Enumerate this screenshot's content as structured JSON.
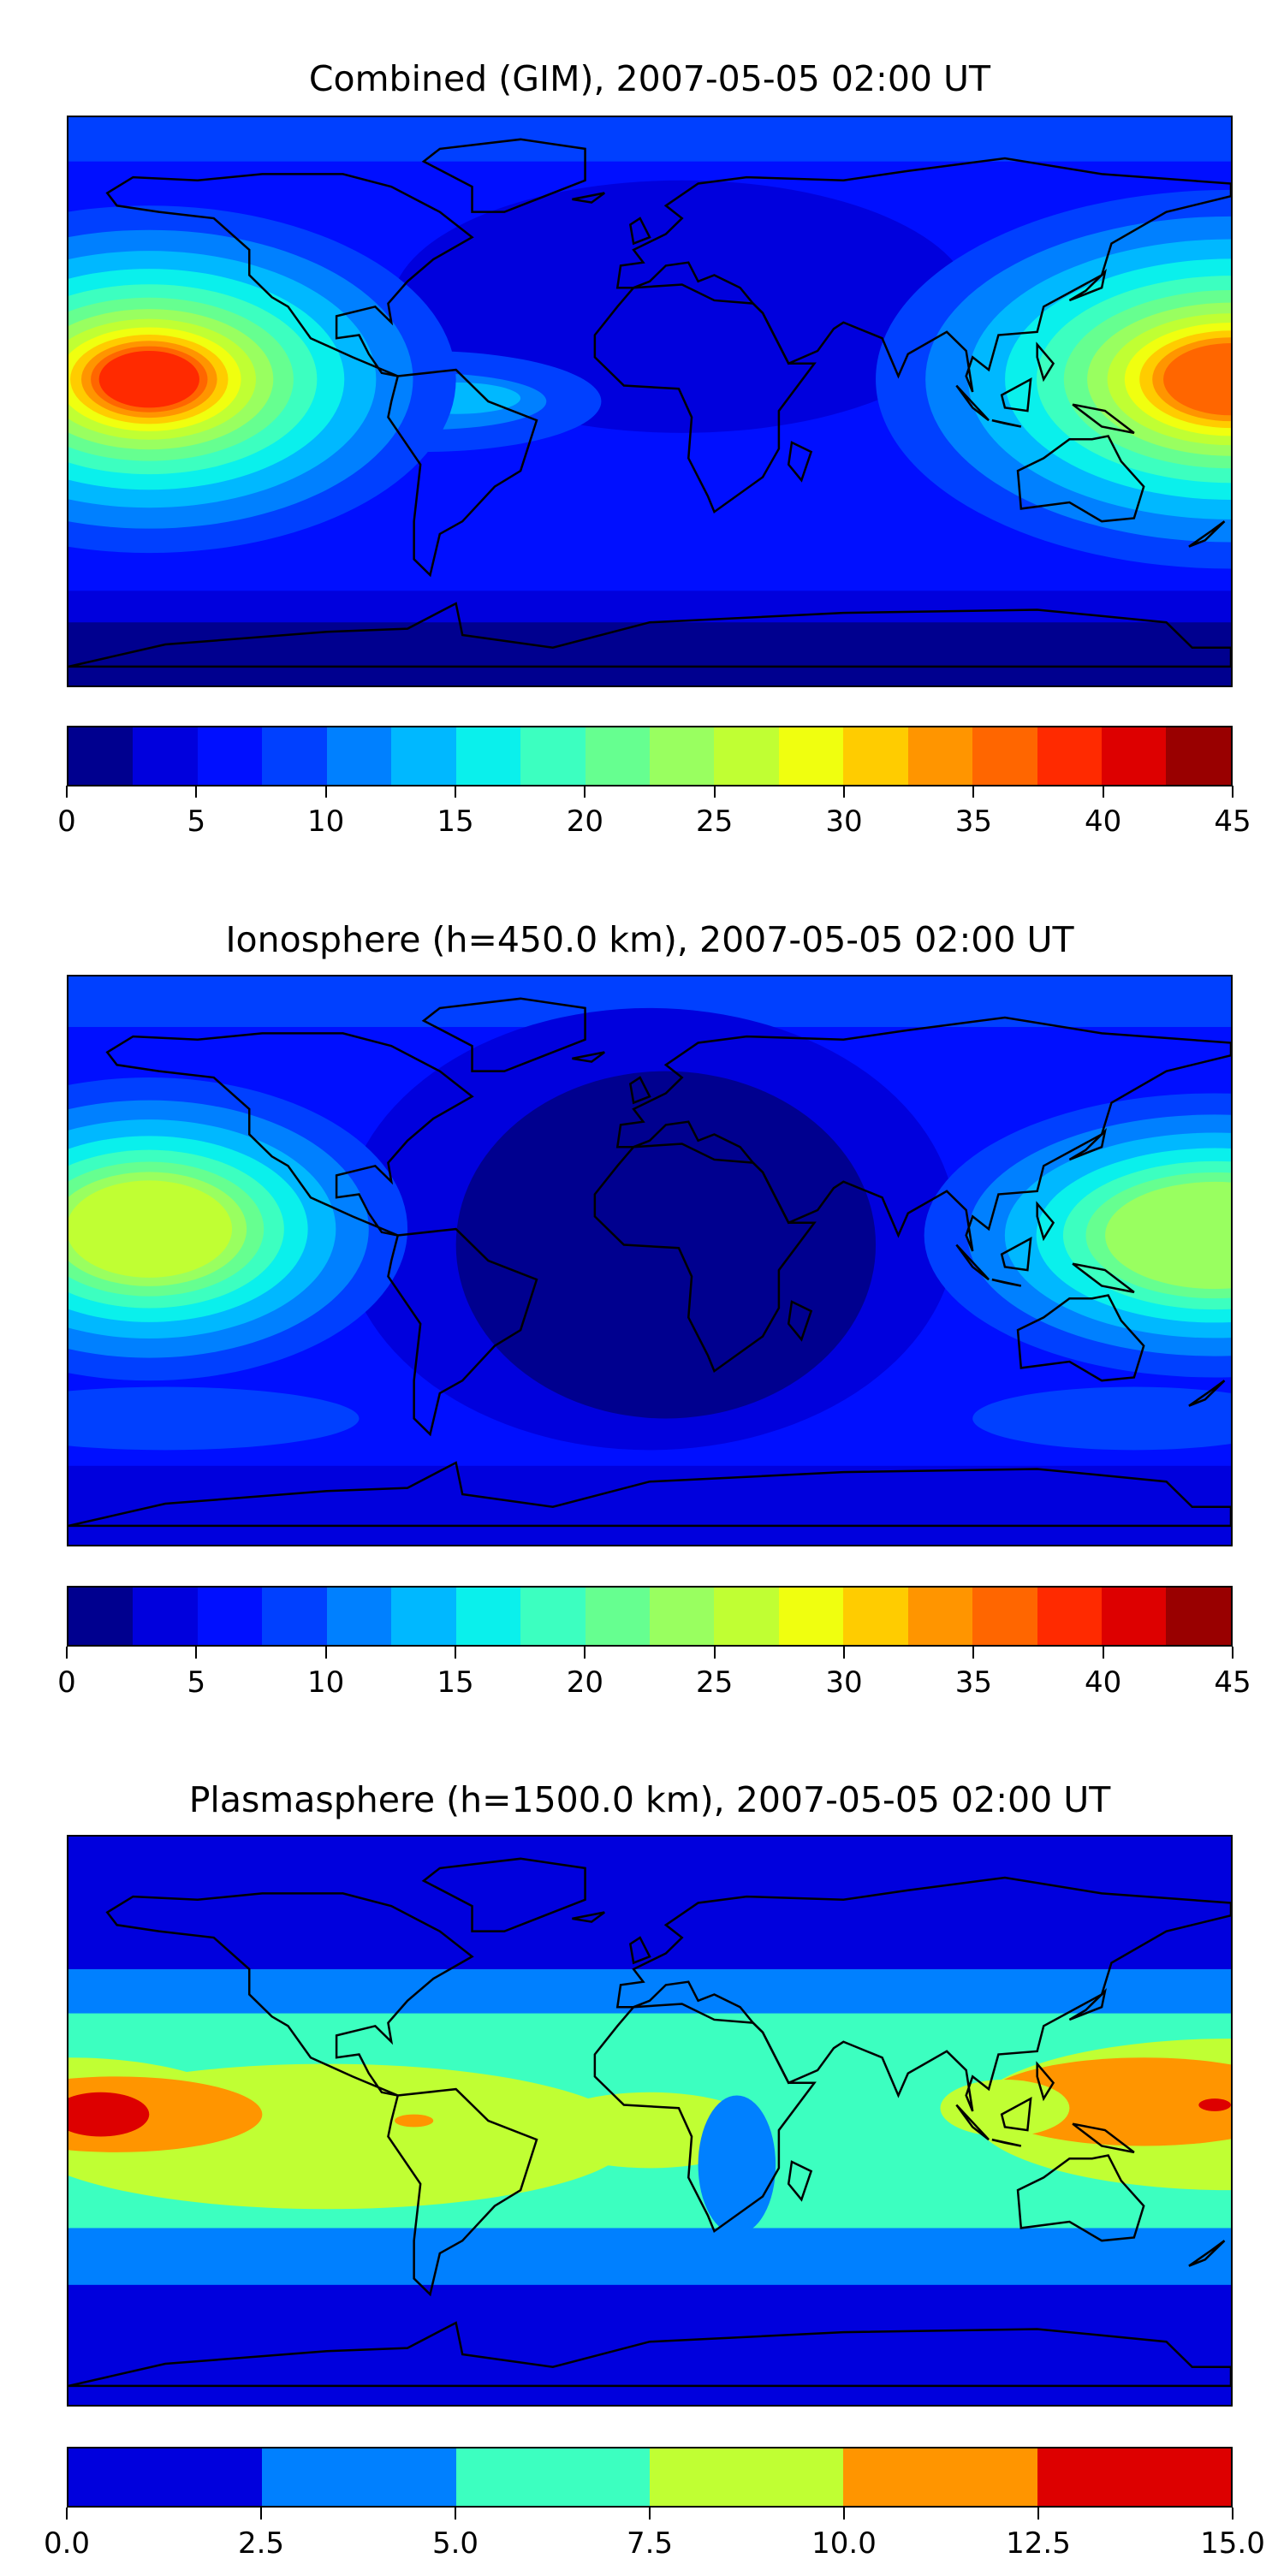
{
  "chart_data": [
    {
      "type": "heatmap",
      "title": "Combined (GIM), 2007-05-05 02:00 UT",
      "projection": "equirectangular global map with coastlines",
      "lon_range": [
        -180,
        180
      ],
      "lat_range": [
        -90,
        90
      ],
      "colorbar": {
        "levels": [
          0,
          2.5,
          5,
          7.5,
          10,
          12.5,
          15,
          17.5,
          20,
          22.5,
          25,
          27.5,
          30,
          32.5,
          35,
          37.5,
          40,
          42.5,
          45
        ],
        "ticks": [
          "0",
          "5",
          "10",
          "15",
          "20",
          "25",
          "30",
          "35",
          "40",
          "45"
        ],
        "tick_values": [
          0,
          5,
          10,
          15,
          20,
          25,
          30,
          35,
          40,
          45
        ],
        "colors": [
          "#00008f",
          "#0000dd",
          "#000fff",
          "#0040ff",
          "#0080ff",
          "#00b8ff",
          "#0af0ec",
          "#3cffc0",
          "#66ff90",
          "#99ff60",
          "#c0ff33",
          "#f0ff0f",
          "#ffcc00",
          "#ff9500",
          "#ff6600",
          "#ff2a00",
          "#dd0000",
          "#990000"
        ]
      },
      "features": [
        {
          "region": "central Pacific, ~170W-130W, ~5N",
          "value_max": 40
        },
        {
          "region": "western Pacific / SE Asia, ~100E-180E, ~5N",
          "value_max": 37.5
        },
        {
          "region": "Atlantic / Africa / Europe",
          "value_range": [
            2.5,
            7.5
          ]
        },
        {
          "region": "south polar band",
          "value_range": [
            0,
            5
          ]
        }
      ]
    },
    {
      "type": "heatmap",
      "title": "Ionosphere  (h=450.0 km), 2007-05-05 02:00 UT",
      "lon_range": [
        -180,
        180
      ],
      "lat_range": [
        -90,
        90
      ],
      "colorbar": {
        "levels": [
          0,
          2.5,
          5,
          7.5,
          10,
          12.5,
          15,
          17.5,
          20,
          22.5,
          25,
          27.5,
          30,
          32.5,
          35,
          37.5,
          40,
          42.5,
          45
        ],
        "ticks": [
          "0",
          "5",
          "10",
          "15",
          "20",
          "25",
          "30",
          "35",
          "40",
          "45"
        ],
        "tick_values": [
          0,
          5,
          10,
          15,
          20,
          25,
          30,
          35,
          40,
          45
        ],
        "colors": [
          "#00008f",
          "#0000dd",
          "#000fff",
          "#0040ff",
          "#0080ff",
          "#00b8ff",
          "#0af0ec",
          "#3cffc0",
          "#66ff90",
          "#99ff60",
          "#c0ff33",
          "#f0ff0f",
          "#ffcc00",
          "#ff9500",
          "#ff6600",
          "#ff2a00",
          "#dd0000",
          "#990000"
        ]
      },
      "features": [
        {
          "region": "central Pacific, ~170W-140W, ~10N",
          "value_max": 27.5
        },
        {
          "region": "western Pacific, ~150E-180E, ~5N",
          "value_max": 25
        },
        {
          "region": "Atlantic / Africa",
          "value_range": [
            0,
            2.5
          ]
        }
      ]
    },
    {
      "type": "heatmap",
      "title": "Plasmasphere (h=1500.0 km), 2007-05-05 02:00 UT",
      "lon_range": [
        -180,
        180
      ],
      "lat_range": [
        -90,
        90
      ],
      "colorbar": {
        "levels": [
          0,
          2.5,
          5,
          7.5,
          10,
          12.5,
          15
        ],
        "ticks": [
          "0.0",
          "2.5",
          "5.0",
          "7.5",
          "10.0",
          "12.5",
          "15.0"
        ],
        "tick_values": [
          0,
          2.5,
          5,
          7.5,
          10,
          12.5,
          15
        ],
        "colors": [
          "#0000dd",
          "#0080ff",
          "#3cffc0",
          "#c0ff33",
          "#ff9500",
          "#dd0000"
        ]
      },
      "features": [
        {
          "region": "central Pacific, ~175W-160W, ~0N",
          "value_max": 15
        },
        {
          "region": "western Pacific, ~100E-180E, ~5N",
          "value_max": 15
        },
        {
          "region": "equatorial band",
          "value_range": [
            7.5,
            10
          ]
        },
        {
          "region": "polar regions",
          "value_range": [
            0,
            2.5
          ]
        }
      ]
    }
  ]
}
